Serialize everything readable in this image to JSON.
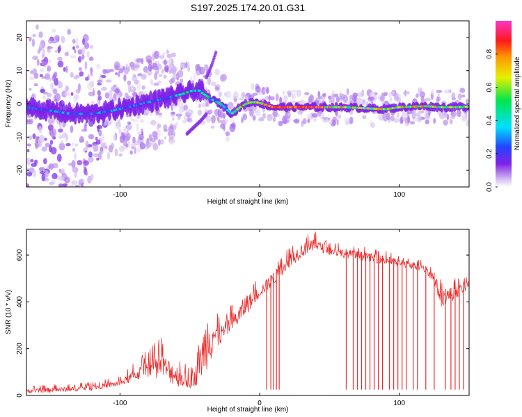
{
  "title": "S197.2025.174.20.01.G31",
  "colors": {
    "snr_line": "#ee2b2b",
    "frame": "#000000"
  },
  "colorbar": {
    "label": "Normalized spectral amplitude",
    "ticks": [
      "0.0",
      "0.2",
      "0.4",
      "0.6",
      "0.8"
    ],
    "tick_values": [
      0.0,
      0.2,
      0.4,
      0.6,
      0.8
    ],
    "range": [
      0,
      1
    ],
    "colormap": "rainbow: white/lavender -> purple -> blue -> cyan -> green -> yellow -> orange -> red -> magenta"
  },
  "chart_data": [
    {
      "type": "heatmap",
      "title": "S197.2025.174.20.01.G31",
      "xlabel": "Height of straight line (km)",
      "ylabel": "Frequency (Hz)",
      "xlim": [
        -167,
        150
      ],
      "ylim": [
        -25,
        25
      ],
      "x_ticks": [
        -100,
        0,
        100
      ],
      "x_tick_labels": [
        "-100",
        "0",
        "100"
      ],
      "y_ticks": [
        -20,
        -10,
        0,
        10,
        20
      ],
      "y_tick_labels": [
        "-20",
        "-10",
        "0",
        "10",
        "20"
      ],
      "ridge": {
        "x": [
          -167,
          -150,
          -135,
          -120,
          -105,
          -95,
          -85,
          -75,
          -65,
          -55,
          -48,
          -43,
          -40,
          -35,
          -30,
          -25,
          -20,
          -17,
          -14,
          -10,
          -6,
          -2,
          2,
          6,
          10,
          20,
          40,
          60,
          70,
          80,
          90,
          100,
          110,
          120,
          130,
          140,
          150
        ],
        "y": [
          -1,
          -2,
          -3,
          -3,
          -2,
          -1,
          0,
          1,
          2,
          3,
          4,
          4,
          3,
          1.5,
          0.5,
          -1,
          -3,
          -2,
          -1,
          0,
          0.5,
          0.5,
          0,
          -0.5,
          -1,
          -1,
          -1,
          -1,
          -1.2,
          -1.4,
          -1.6,
          -1,
          -0.8,
          -0.7,
          -1,
          -1,
          -0.8
        ]
      },
      "branches": [
        {
          "x": [
            -52,
            -47,
            -42,
            -38
          ],
          "y": [
            -9,
            -7,
            -5,
            -3
          ]
        },
        {
          "x": [
            -38,
            -34,
            -31
          ],
          "y": [
            8,
            12,
            16
          ]
        }
      ],
      "colorbar_range": [
        0,
        1
      ]
    },
    {
      "type": "line",
      "xlabel": "Height of straight line (km)",
      "ylabel": "SNR (10 * v/v)",
      "xlim": [
        -167,
        150
      ],
      "ylim": [
        0,
        710
      ],
      "x_ticks": [
        -100,
        0,
        100
      ],
      "x_tick_labels": [
        "-100",
        "0",
        "100"
      ],
      "y_ticks": [
        0,
        200,
        400,
        600
      ],
      "y_tick_labels": [
        "0",
        "200",
        "400",
        "600"
      ],
      "envelope": {
        "x": [
          -167,
          -140,
          -120,
          -100,
          -90,
          -80,
          -70,
          -60,
          -50,
          -45,
          -40,
          -35,
          -30,
          -25,
          -20,
          -15,
          -10,
          -5,
          0,
          10,
          20,
          30,
          40,
          50,
          60,
          70,
          80,
          90,
          100,
          110,
          120,
          125,
          130,
          140,
          150
        ],
        "base": [
          10,
          15,
          22,
          40,
          60,
          80,
          70,
          40,
          30,
          45,
          90,
          140,
          200,
          240,
          270,
          300,
          340,
          380,
          420,
          470,
          540,
          590,
          620,
          600,
          590,
          580,
          570,
          560,
          550,
          540,
          520,
          470,
          380,
          410,
          460
        ],
        "peak": [
          40,
          50,
          60,
          80,
          140,
          200,
          250,
          200,
          110,
          200,
          430,
          600,
          340,
          370,
          400,
          430,
          500,
          480,
          500,
          560,
          640,
          690,
          700,
          660,
          650,
          640,
          630,
          620,
          600,
          590,
          570,
          560,
          500,
          500,
          520
        ]
      },
      "dropout_x": [
        5,
        8,
        10,
        12,
        14,
        62,
        67,
        70,
        73,
        76,
        79,
        82,
        85,
        88,
        93,
        96,
        99,
        102,
        105,
        110,
        113,
        119,
        125,
        133,
        137,
        140,
        143,
        146
      ],
      "dropout_y": 25
    }
  ]
}
